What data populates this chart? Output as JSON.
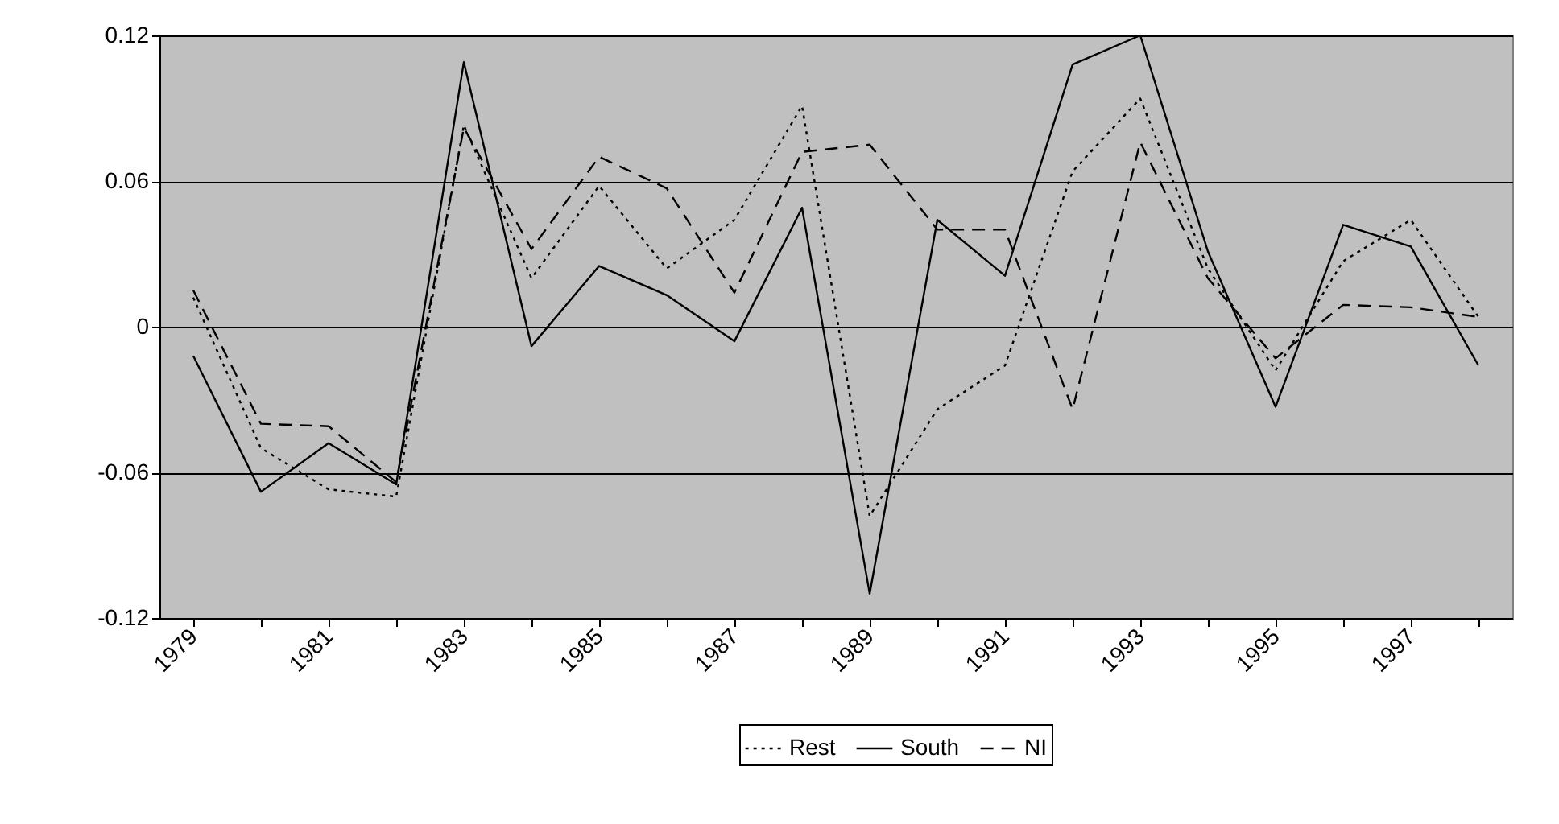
{
  "chart_data": {
    "type": "line",
    "categories": [
      "1979",
      null,
      "1981",
      null,
      "1983",
      null,
      "1985",
      null,
      "1987",
      null,
      "1989",
      null,
      "1991",
      null,
      "1993",
      null,
      "1995",
      null,
      "1997",
      null
    ],
    "series": [
      {
        "name": "Rest",
        "color": "#000000",
        "line_style": "dotted",
        "values": [
          0.012,
          -0.05,
          -0.067,
          -0.07,
          0.083,
          0.02,
          0.058,
          0.024,
          0.044,
          0.091,
          -0.078,
          -0.034,
          -0.016,
          0.064,
          0.094,
          0.024,
          -0.018,
          0.027,
          0.044,
          0.004
        ]
      },
      {
        "name": "South",
        "color": "#000000",
        "line_style": "solid",
        "values": [
          -0.012,
          -0.068,
          -0.048,
          -0.065,
          0.109,
          -0.008,
          0.025,
          0.013,
          -0.006,
          0.049,
          -0.11,
          0.044,
          0.021,
          0.108,
          0.12,
          0.031,
          -0.033,
          0.042,
          0.033,
          -0.016
        ]
      },
      {
        "name": "NI",
        "color": "#000000",
        "line_style": "dashed",
        "values": [
          0.015,
          -0.04,
          -0.041,
          -0.064,
          0.082,
          0.032,
          0.07,
          0.057,
          0.014,
          0.072,
          0.075,
          0.04,
          0.04,
          -0.034,
          0.076,
          0.02,
          -0.013,
          0.009,
          0.008,
          0.004
        ]
      }
    ],
    "ylim": [
      -0.12,
      0.12
    ],
    "yticks": [
      -0.12,
      -0.06,
      0,
      0.06,
      0.12
    ],
    "grid": "y",
    "legend": "bottom"
  }
}
